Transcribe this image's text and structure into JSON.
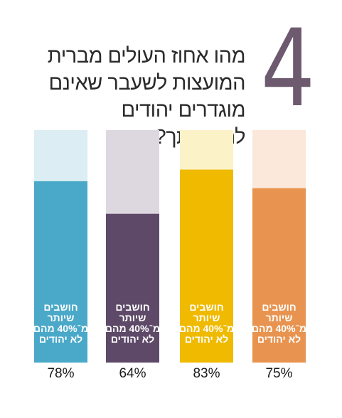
{
  "big_number": "4",
  "question": "מהו אחוז העולים מברית המועצות לשעבר שאינם מוגדרים יהודים להערכתך?",
  "chart_data": {
    "type": "bar",
    "orientation": "vertical",
    "ylim": [
      0,
      100
    ],
    "bars": [
      {
        "label": "חושבים שיותר מ־40% מהם לא יהודים",
        "label_lines": [
          "חושבים",
          "שיותר",
          "מ־40% מהם",
          "לא יהודים"
        ],
        "value": 78,
        "value_label": "78%",
        "color": "#4aa9c9",
        "track_color": "#dcedf3"
      },
      {
        "label": "חושבים שיותר מ־40% מהם לא יהודים",
        "label_lines": [
          "חושבים",
          "שיותר",
          "מ־40% מהם",
          "לא יהודים"
        ],
        "value": 64,
        "value_label": "64%",
        "color": "#5e4a68",
        "track_color": "#ddd8df"
      },
      {
        "label": "חושבים שיותר מ־40% מהם לא יהודים",
        "label_lines": [
          "חושבים",
          "שיותר",
          "מ־40% מהם",
          "לא יהודים"
        ],
        "value": 83,
        "value_label": "83%",
        "color": "#efba00",
        "track_color": "#fcf2c7"
      },
      {
        "label": "חושבים שיותר מ־40% מהם לא יהודים",
        "label_lines": [
          "חושבים",
          "שיותר",
          "מ־40% מהם",
          "לא יהודים"
        ],
        "value": 75,
        "value_label": "75%",
        "color": "#e89450",
        "track_color": "#fbe8da"
      }
    ]
  }
}
